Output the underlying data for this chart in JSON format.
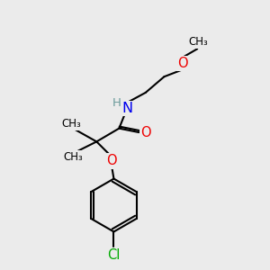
{
  "bg_color": "#ebebeb",
  "bond_color": "#000000",
  "bond_width": 1.5,
  "atom_colors": {
    "C": "#000000",
    "H": "#6a9a9a",
    "N": "#0000ee",
    "O": "#ee0000",
    "Cl": "#00aa00"
  },
  "font_size": 9.5,
  "fig_size": [
    3.0,
    3.0
  ],
  "dpi": 100,
  "xlim": [
    0,
    10
  ],
  "ylim": [
    0,
    10
  ]
}
